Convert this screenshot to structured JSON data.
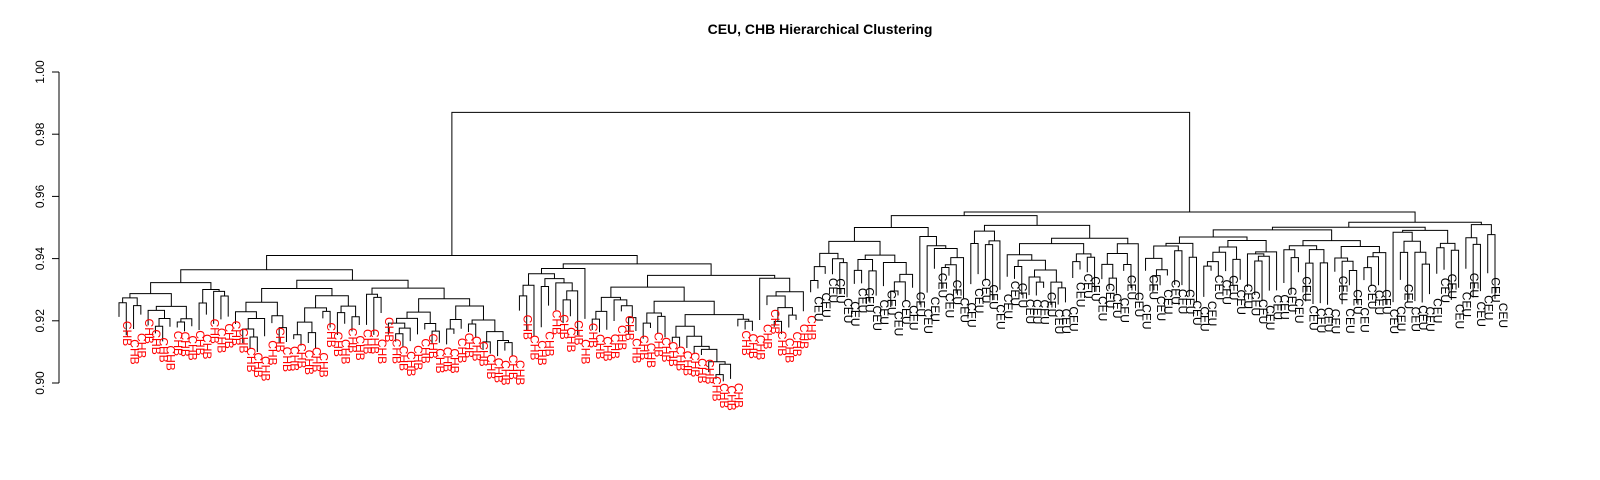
{
  "chart_data": {
    "type": "dendrogram",
    "title": "CEU, CHB Hierarchical Clustering",
    "xlabel": "",
    "ylabel": "",
    "ylim": [
      0.9,
      1.0
    ],
    "y_ticks": [
      "0.90",
      "0.92",
      "0.94",
      "0.96",
      "0.98",
      "1.00"
    ],
    "colors": {
      "CHB": "#ff0000",
      "CEU": "#000000",
      "branch": "#000000"
    },
    "root_height": 0.987,
    "groups": [
      {
        "name": "CHB",
        "leaf_count": 95,
        "cluster_height": 0.941
      },
      {
        "name": "CEU",
        "leaf_count": 95,
        "cluster_height": 0.955
      }
    ]
  }
}
